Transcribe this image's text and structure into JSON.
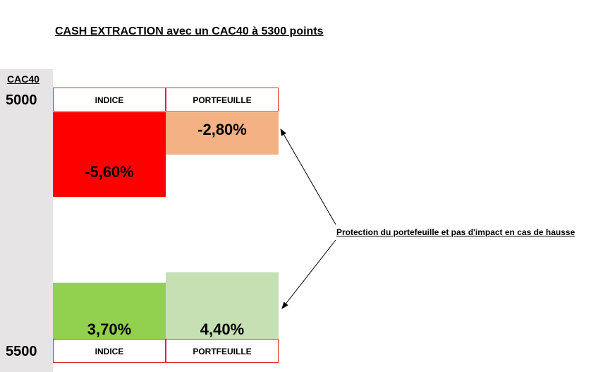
{
  "title": "CASH EXTRACTION avec un CAC40 à 5300 points",
  "axis": {
    "name": "CAC40",
    "top_value": "5000",
    "bottom_value": "5500"
  },
  "headers": {
    "top": [
      "INDICE",
      "PORTFEUILLE"
    ],
    "bottom": [
      "INDICE",
      "PORTFEUILLE"
    ]
  },
  "annotation": "Protection du portefeuille et pas d'impact en cas de hausse",
  "colors": {
    "indice_down": "#ff0000",
    "portefeuille_down": "#f4b183",
    "indice_up": "#92d050",
    "portefeuille_up": "#c6e0b4",
    "header_border": "#e0242b",
    "side_panel": "#e6e4e4"
  },
  "chart_data": {
    "type": "bar",
    "title": "CASH EXTRACTION avec un CAC40 à 5300 points",
    "categories": [
      "INDICE",
      "PORTFEUILLE"
    ],
    "series": [
      {
        "name": "5000",
        "values": [
          -5.6,
          -2.8
        ],
        "labels": [
          "-5,60%",
          "-2,80%"
        ]
      },
      {
        "name": "5500",
        "values": [
          3.7,
          4.4
        ],
        "labels": [
          "3,70%",
          "4,40%"
        ]
      }
    ]
  }
}
